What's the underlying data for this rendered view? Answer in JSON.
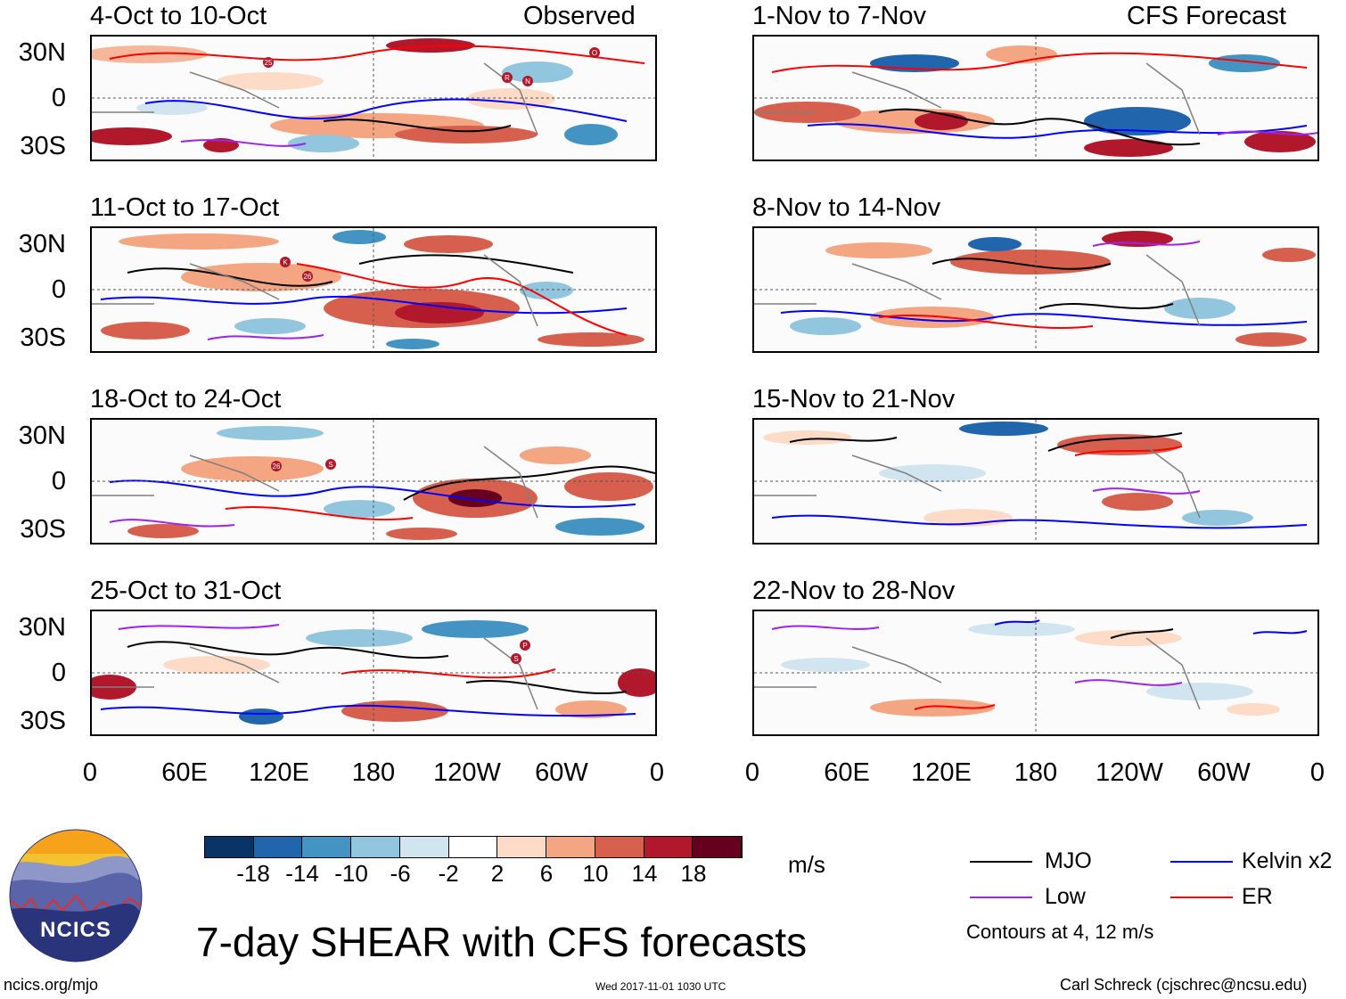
{
  "panels": [
    {
      "title": "4-Oct to 10-Oct",
      "label": "Observed"
    },
    {
      "title": "11-Oct to 17-Oct"
    },
    {
      "title": "18-Oct to 24-Oct"
    },
    {
      "title": "25-Oct to 31-Oct"
    },
    {
      "title": "1-Nov to 7-Nov",
      "label": "CFS Forecast"
    },
    {
      "title": "8-Nov to 14-Nov"
    },
    {
      "title": "15-Nov to 21-Nov"
    },
    {
      "title": "22-Nov to 28-Nov"
    }
  ],
  "axes": {
    "lat_labels": [
      "30N",
      "0",
      "30S"
    ],
    "lon_labels": [
      "0",
      "60E",
      "120E",
      "180",
      "120W",
      "60W",
      "0"
    ]
  },
  "storms": {
    "p1": [
      "25",
      "R",
      "N",
      "O"
    ],
    "p2": [
      "K",
      "26"
    ],
    "p3": [
      "26",
      "S"
    ],
    "p4": [
      "P",
      "S"
    ]
  },
  "colorbar": {
    "labels": [
      "-18",
      "-14",
      "-10",
      "-6",
      "-2",
      "2",
      "6",
      "10",
      "14",
      "18"
    ],
    "colors": [
      "#0a3466",
      "#2166ac",
      "#4393c3",
      "#92c5de",
      "#d1e5f0",
      "#ffffff",
      "#fddbc7",
      "#f4a582",
      "#d6604d",
      "#b2182b",
      "#67001f"
    ],
    "unit": "m/s"
  },
  "legend": {
    "items": [
      {
        "label": "MJO",
        "color": "#000000"
      },
      {
        "label": "Kelvin x2",
        "color": "#0000ff"
      },
      {
        "label": "Low",
        "color": "#a020f0"
      },
      {
        "label": "ER",
        "color": "#ff0000"
      }
    ],
    "note": "Contours at 4, 12 m/s"
  },
  "logo": {
    "text": "NCICS"
  },
  "footer": {
    "title": "7-day SHEAR with CFS forecasts",
    "url": "ncics.org/mjo",
    "timestamp": "Wed 2017-11-01 1030 UTC",
    "credit": "Carl Schreck (cjschrec@ncsu.edu)"
  }
}
